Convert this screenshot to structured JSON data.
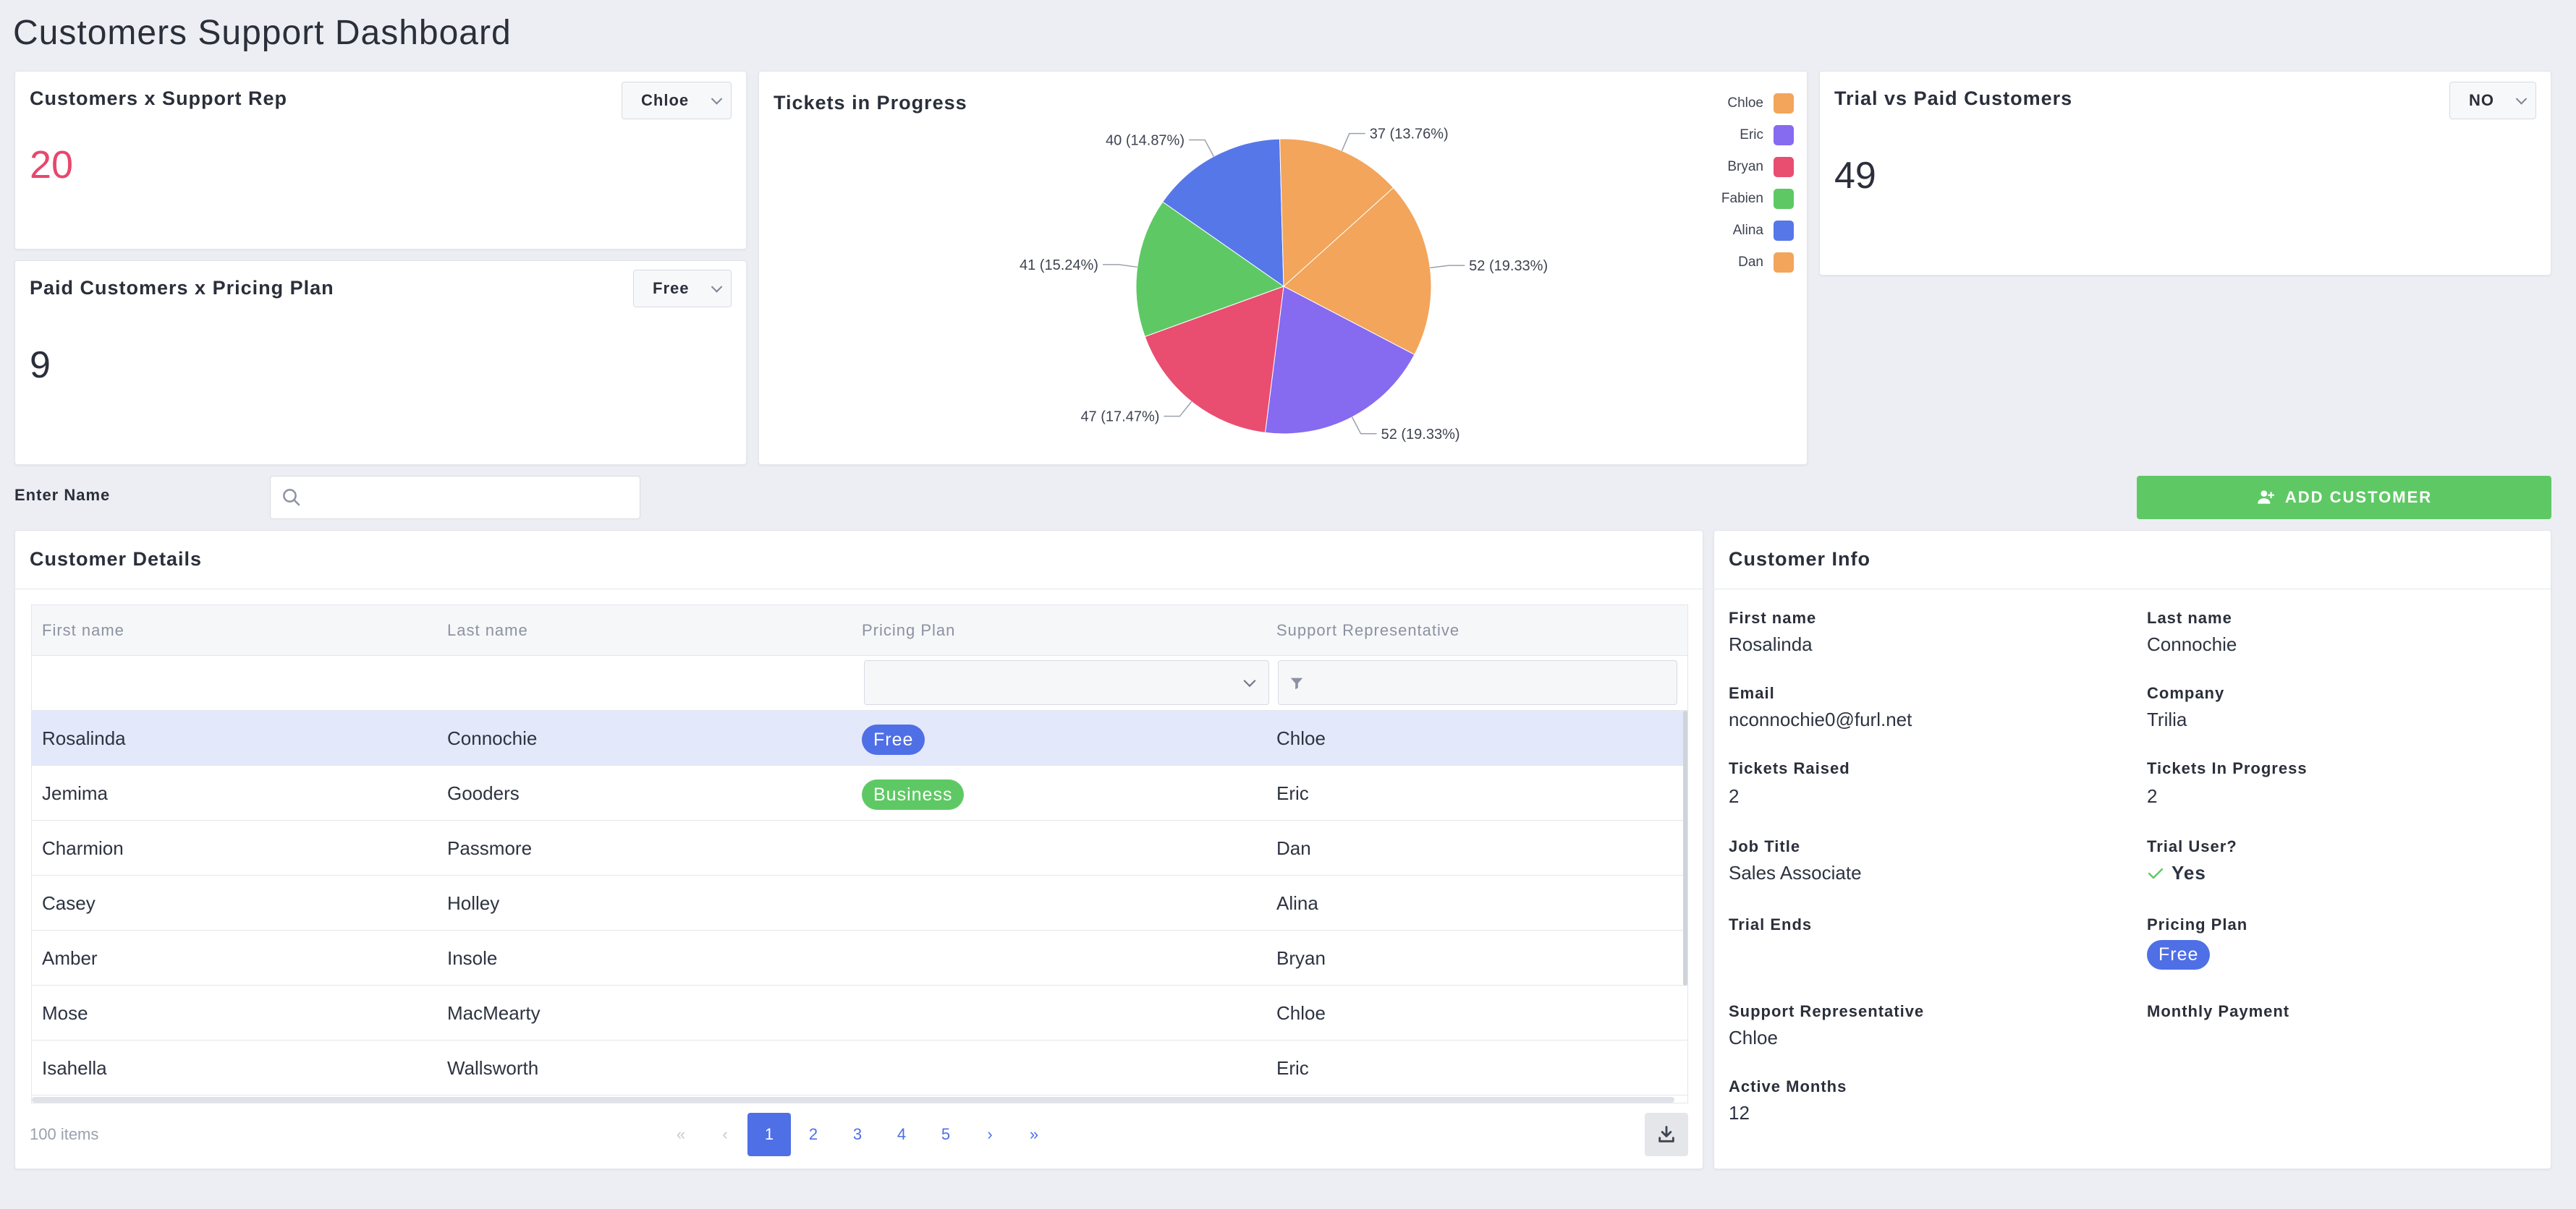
{
  "page_title": "Customers Support Dashboard",
  "kpi_support_rep": {
    "title": "Customers x Support Rep",
    "selected": "Chloe",
    "value": "20",
    "value_color": "#e8476c"
  },
  "kpi_pricing_plan": {
    "title": "Paid Customers x Pricing Plan",
    "selected": "Free",
    "value": "9"
  },
  "kpi_trial": {
    "title": "Trial vs Paid Customers",
    "selected": "NO",
    "value": "49"
  },
  "chart_panel": {
    "title": "Tickets in Progress"
  },
  "chart_data": {
    "type": "pie",
    "title": "Tickets in Progress",
    "slices": [
      {
        "label": "Chloe",
        "value": 52,
        "text": "52 (19.33%)",
        "color": "#f2a55b"
      },
      {
        "label": "Eric",
        "value": 52,
        "text": "52 (19.33%)",
        "color": "#866af0"
      },
      {
        "label": "Bryan",
        "value": 47,
        "text": "47 (17.47%)",
        "color": "#e94d70"
      },
      {
        "label": "Fabien",
        "value": 41,
        "text": "41 (15.24%)",
        "color": "#5ec964"
      },
      {
        "label": "Alina",
        "value": 40,
        "text": "40 (14.87%)",
        "color": "#5677e8"
      },
      {
        "label": "Dan",
        "value": 37,
        "text": "37 (13.76%)",
        "color": "#f2a55b"
      }
    ],
    "legend": [
      "Chloe",
      "Eric",
      "Bryan",
      "Fabien",
      "Alina",
      "Dan"
    ],
    "legend_position": "top-right"
  },
  "search": {
    "label": "Enter Name",
    "placeholder": ""
  },
  "add_customer": {
    "label": "ADD CUSTOMER",
    "color": "#5ec964"
  },
  "details": {
    "title": "Customer Details",
    "columns": [
      "First name",
      "Last name",
      "Pricing Plan",
      "Support Representative"
    ],
    "rows": [
      {
        "first": "Rosalinda",
        "last": "Connochie",
        "plan": "Free",
        "rep": "Chloe"
      },
      {
        "first": "Jemima",
        "last": "Gooders",
        "plan": "Business",
        "rep": "Eric"
      },
      {
        "first": "Charmion",
        "last": "Passmore",
        "plan": "",
        "rep": "Dan"
      },
      {
        "first": "Casey",
        "last": "Holley",
        "plan": "",
        "rep": "Alina"
      },
      {
        "first": "Amber",
        "last": "Insole",
        "plan": "",
        "rep": "Bryan"
      },
      {
        "first": "Mose",
        "last": "MacMearty",
        "plan": "",
        "rep": "Chloe"
      },
      {
        "first": "Isahella",
        "last": "Wallsworth",
        "plan": "",
        "rep": "Eric"
      }
    ],
    "selected_row": 0,
    "items_count": "100 items",
    "pager": {
      "first": "«",
      "prev": "‹",
      "pages": [
        "1",
        "2",
        "3",
        "4",
        "5"
      ],
      "active": "1",
      "next": "›",
      "last": "»"
    },
    "plan_colors": {
      "Free": "#4f6fe6",
      "Business": "#5ec964"
    }
  },
  "info": {
    "title": "Customer Info",
    "first_name_label": "First name",
    "first_name": "Rosalinda",
    "last_name_label": "Last name",
    "last_name": "Connochie",
    "email_label": "Email",
    "email": "nconnochie0@furl.net",
    "company_label": "Company",
    "company": "Trilia",
    "tickets_raised_label": "Tickets Raised",
    "tickets_raised": "2",
    "tickets_progress_label": "Tickets In Progress",
    "tickets_progress": "2",
    "job_title_label": "Job Title",
    "job_title": "Sales Associate",
    "trial_user_label": "Trial User?",
    "trial_user": "Yes",
    "trial_ends_label": "Trial Ends",
    "pricing_plan_label": "Pricing Plan",
    "pricing_plan": "Free",
    "support_rep_label": "Support Representative",
    "support_rep": "Chloe",
    "monthly_payment_label": "Monthly Payment",
    "active_months_label": "Active Months",
    "active_months": "12"
  }
}
